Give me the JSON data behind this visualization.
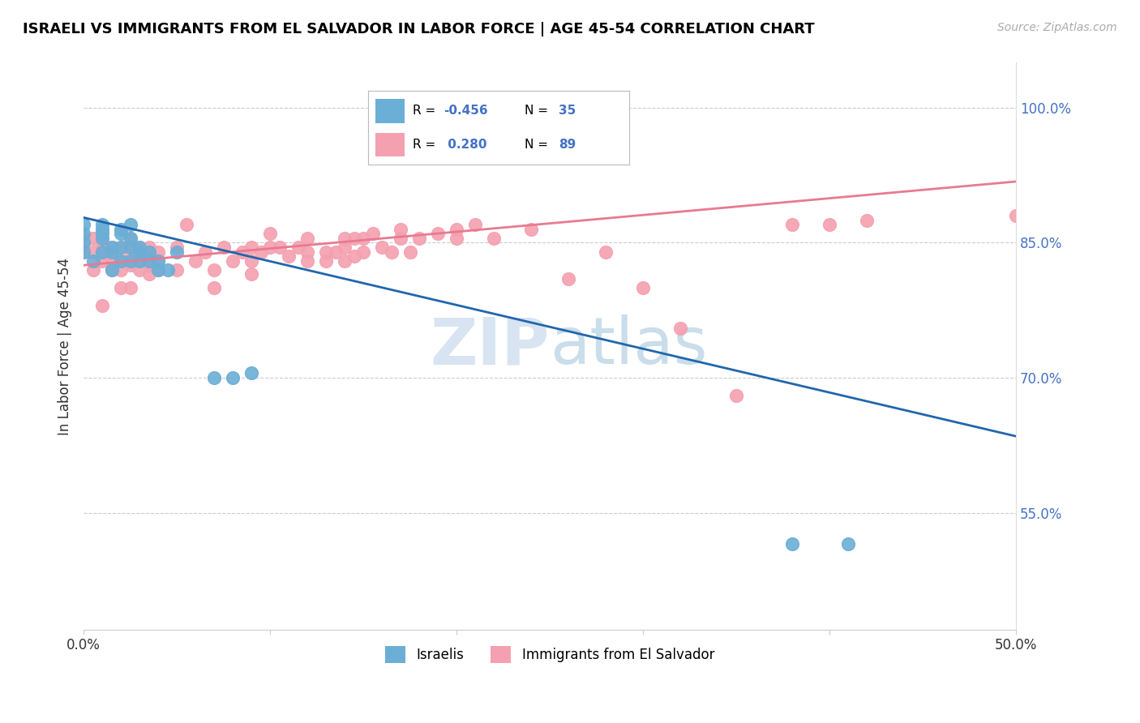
{
  "title": "ISRAELI VS IMMIGRANTS FROM EL SALVADOR IN LABOR FORCE | AGE 45-54 CORRELATION CHART",
  "source": "Source: ZipAtlas.com",
  "ylabel": "In Labor Force | Age 45-54",
  "ytick_labels": [
    "100.0%",
    "85.0%",
    "70.0%",
    "55.0%"
  ],
  "ytick_values": [
    1.0,
    0.85,
    0.7,
    0.55
  ],
  "xlim": [
    0.0,
    0.5
  ],
  "ylim": [
    0.42,
    1.05
  ],
  "blue_color": "#6baed6",
  "pink_color": "#f4a0b0",
  "blue_line_color": "#2166ac",
  "pink_line_color": "#e87a90",
  "watermark_zip": "ZIP",
  "watermark_atlas": "atlas",
  "israelis_scatter_x": [
    0.0,
    0.0,
    0.0,
    0.0,
    0.005,
    0.01,
    0.01,
    0.01,
    0.01,
    0.01,
    0.015,
    0.015,
    0.015,
    0.02,
    0.02,
    0.02,
    0.02,
    0.025,
    0.025,
    0.025,
    0.025,
    0.03,
    0.03,
    0.03,
    0.035,
    0.035,
    0.04,
    0.04,
    0.045,
    0.05,
    0.07,
    0.08,
    0.09,
    0.38,
    0.41
  ],
  "israelis_scatter_y": [
    0.84,
    0.85,
    0.86,
    0.87,
    0.83,
    0.84,
    0.855,
    0.86,
    0.865,
    0.87,
    0.82,
    0.84,
    0.845,
    0.83,
    0.845,
    0.86,
    0.865,
    0.83,
    0.845,
    0.855,
    0.87,
    0.83,
    0.84,
    0.845,
    0.83,
    0.84,
    0.82,
    0.83,
    0.82,
    0.84,
    0.7,
    0.7,
    0.705,
    0.515,
    0.515
  ],
  "israelis_line_x": [
    0.0,
    0.5
  ],
  "israelis_line_y": [
    0.878,
    0.635
  ],
  "salvador_scatter_x": [
    0.0,
    0.0,
    0.0,
    0.005,
    0.005,
    0.005,
    0.01,
    0.01,
    0.01,
    0.01,
    0.01,
    0.015,
    0.015,
    0.015,
    0.015,
    0.02,
    0.02,
    0.02,
    0.02,
    0.025,
    0.025,
    0.025,
    0.025,
    0.025,
    0.03,
    0.03,
    0.03,
    0.03,
    0.035,
    0.035,
    0.035,
    0.035,
    0.04,
    0.04,
    0.04,
    0.05,
    0.05,
    0.055,
    0.06,
    0.065,
    0.07,
    0.07,
    0.075,
    0.08,
    0.085,
    0.09,
    0.09,
    0.09,
    0.095,
    0.1,
    0.1,
    0.105,
    0.11,
    0.115,
    0.12,
    0.12,
    0.12,
    0.13,
    0.13,
    0.135,
    0.14,
    0.14,
    0.14,
    0.145,
    0.145,
    0.15,
    0.15,
    0.155,
    0.16,
    0.165,
    0.17,
    0.17,
    0.175,
    0.18,
    0.19,
    0.2,
    0.2,
    0.21,
    0.22,
    0.24,
    0.26,
    0.28,
    0.3,
    0.32,
    0.35,
    0.38,
    0.4,
    0.42,
    0.5
  ],
  "salvador_scatter_y": [
    0.84,
    0.845,
    0.855,
    0.82,
    0.84,
    0.855,
    0.78,
    0.83,
    0.84,
    0.845,
    0.85,
    0.82,
    0.83,
    0.84,
    0.845,
    0.8,
    0.82,
    0.83,
    0.845,
    0.8,
    0.825,
    0.835,
    0.845,
    0.855,
    0.82,
    0.83,
    0.84,
    0.845,
    0.815,
    0.825,
    0.835,
    0.845,
    0.82,
    0.83,
    0.84,
    0.82,
    0.845,
    0.87,
    0.83,
    0.84,
    0.8,
    0.82,
    0.845,
    0.83,
    0.84,
    0.815,
    0.83,
    0.845,
    0.84,
    0.845,
    0.86,
    0.845,
    0.835,
    0.845,
    0.83,
    0.84,
    0.855,
    0.83,
    0.84,
    0.84,
    0.83,
    0.845,
    0.855,
    0.835,
    0.855,
    0.84,
    0.855,
    0.86,
    0.845,
    0.84,
    0.855,
    0.865,
    0.84,
    0.855,
    0.86,
    0.855,
    0.865,
    0.87,
    0.855,
    0.865,
    0.81,
    0.84,
    0.8,
    0.755,
    0.68,
    0.87,
    0.87,
    0.875,
    0.88
  ],
  "salvador_line_x": [
    0.0,
    0.5
  ],
  "salvador_line_y": [
    0.825,
    0.918
  ]
}
